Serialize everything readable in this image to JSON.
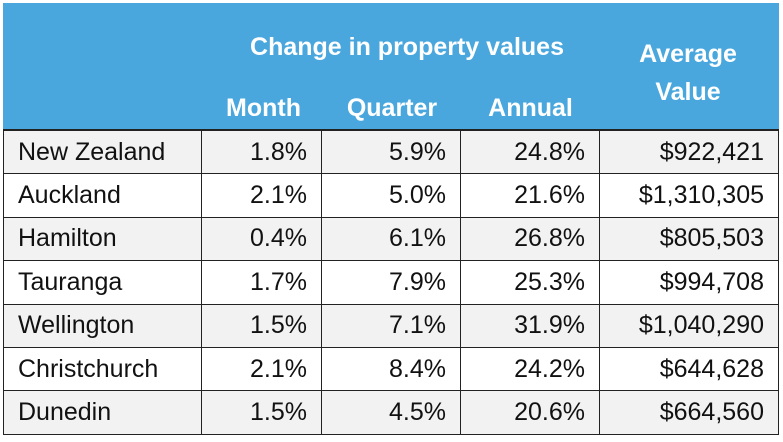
{
  "header": {
    "group_title": "Change in property values",
    "month": "Month",
    "quarter": "Quarter",
    "annual": "Annual",
    "average_line1": "Average",
    "average_line2": "Value"
  },
  "colors": {
    "header_bg": "#49a7dd",
    "header_text": "#ffffff",
    "row_alt": "#f2f2f2"
  },
  "rows": [
    {
      "name": "New Zealand",
      "month": "1.8%",
      "quarter": "5.9%",
      "annual": "24.8%",
      "average": "$922,421"
    },
    {
      "name": "Auckland",
      "month": "2.1%",
      "quarter": "5.0%",
      "annual": "21.6%",
      "average": "$1,310,305"
    },
    {
      "name": "Hamilton",
      "month": "0.4%",
      "quarter": "6.1%",
      "annual": "26.8%",
      "average": "$805,503"
    },
    {
      "name": "Tauranga",
      "month": "1.7%",
      "quarter": "7.9%",
      "annual": "25.3%",
      "average": "$994,708"
    },
    {
      "name": "Wellington",
      "month": "1.5%",
      "quarter": "7.1%",
      "annual": "31.9%",
      "average": "$1,040,290"
    },
    {
      "name": "Christchurch",
      "month": "2.1%",
      "quarter": "8.4%",
      "annual": "24.2%",
      "average": "$644,628"
    },
    {
      "name": "Dunedin",
      "month": "1.5%",
      "quarter": "4.5%",
      "annual": "20.6%",
      "average": "$664,560"
    }
  ]
}
